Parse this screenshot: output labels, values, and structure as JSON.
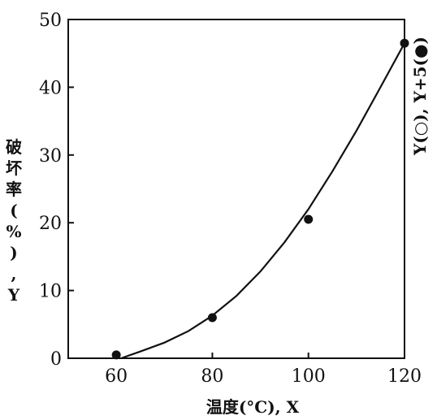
{
  "chart_data": {
    "type": "scatter",
    "title": "",
    "xlabel": "温度(°C), X",
    "ylabel": "破坏率(%), Y",
    "right_label": "Y(○), Y+5(●)",
    "xlim": [
      50,
      120
    ],
    "ylim": [
      0,
      50
    ],
    "x_ticks": [
      60,
      80,
      100,
      120
    ],
    "y_ticks": [
      0,
      10,
      20,
      30,
      40,
      50
    ],
    "grid": false,
    "series": [
      {
        "marker": "filled-circle",
        "x": [
          60,
          80,
          100,
          120
        ],
        "y": [
          0.5,
          6,
          20.5,
          46.5
        ]
      }
    ],
    "fitted_curve": {
      "x": [
        61,
        65,
        70,
        75,
        80,
        85,
        90,
        95,
        100,
        105,
        110,
        115,
        120
      ],
      "y": [
        0,
        1.0,
        2.3,
        4.0,
        6.3,
        9.2,
        12.8,
        17.1,
        22.0,
        27.6,
        33.6,
        40.0,
        46.5
      ]
    }
  }
}
